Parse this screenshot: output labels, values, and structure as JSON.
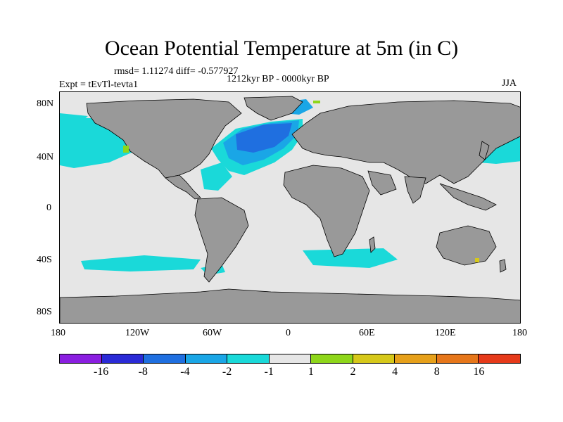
{
  "title": "Ocean Potential Temperature at 5m (in C)",
  "stats": "rmsd= 1.11274 diff= -0.577927",
  "experiment": "Expt = tEvTl-tevta1",
  "period": "1212kyr BP - 0000kyr BP",
  "season": "JJA",
  "lat_labels": [
    "80N",
    "40N",
    "0",
    "40S",
    "80S"
  ],
  "lon_labels": [
    "180",
    "120W",
    "60W",
    "0",
    "60E",
    "120E",
    "180"
  ],
  "colorbar": {
    "colors": [
      "#8a1ee0",
      "#2a2ad6",
      "#1f6fe0",
      "#1aa6e6",
      "#1ad9d9",
      "#e6e6e6",
      "#8ed61a",
      "#d6c81a",
      "#e6a01a",
      "#e6761a",
      "#e63a1a"
    ],
    "labels": [
      "-16",
      "-8",
      "-4",
      "-2",
      "-1",
      "1",
      "2",
      "4",
      "8",
      "16"
    ]
  },
  "map_colors": {
    "land": "#999999",
    "ocean_neutral": "#e6e6e6",
    "cool_1": "#1ad9d9",
    "cool_2": "#1aa6e6",
    "cool_3": "#1f6fe0",
    "warm_1": "#8ed61a"
  }
}
